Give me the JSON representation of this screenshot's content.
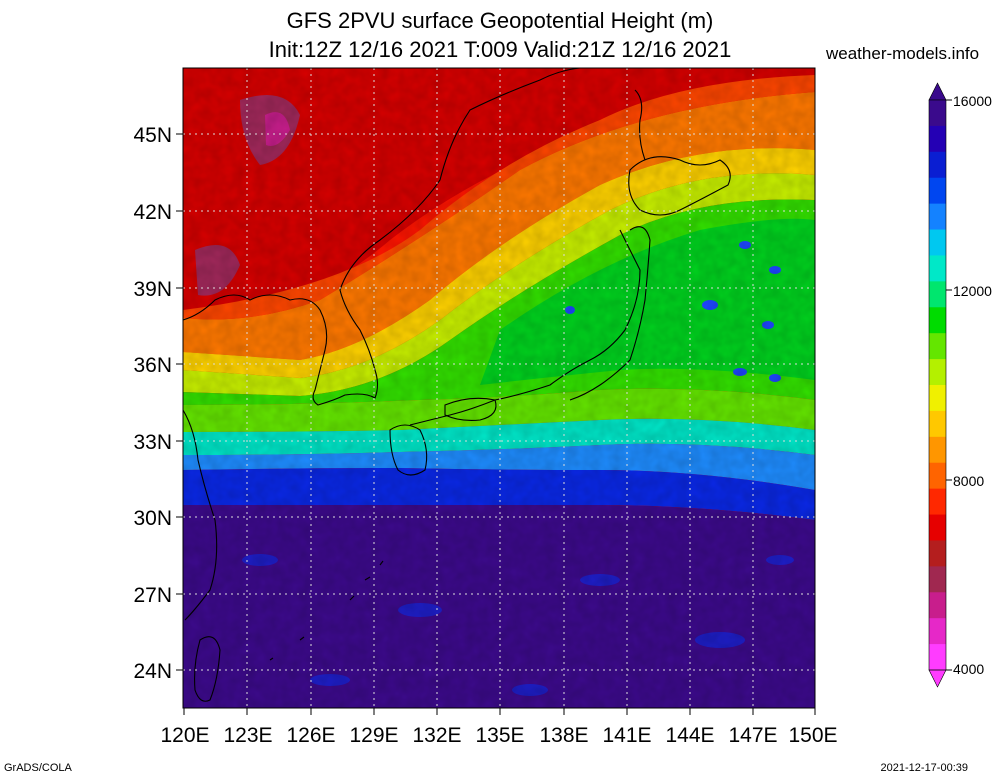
{
  "header": {
    "title_line1": "GFS 2PVU surface Geopotential Height (m)",
    "title_line2": "Init:12Z 12/16 2021 T:009 Valid:21Z 12/16 2021",
    "site": "weather-models.info"
  },
  "axes": {
    "lat_labels": [
      "45N",
      "42N",
      "39N",
      "36N",
      "33N",
      "30N",
      "27N",
      "24N"
    ],
    "lon_labels": [
      "120E",
      "123E",
      "126E",
      "129E",
      "132E",
      "135E",
      "138E",
      "141E",
      "144E",
      "147E",
      "150E"
    ]
  },
  "colorbar": {
    "labels": [
      "16000",
      "12000",
      "8000",
      "4000"
    ],
    "colors": [
      "#3a0a8c",
      "#2400b4",
      "#0a1ed2",
      "#0046f0",
      "#1482ff",
      "#00c8f0",
      "#00e8c8",
      "#00e66e",
      "#00dc00",
      "#64e600",
      "#b4f000",
      "#f0f000",
      "#ffc800",
      "#ff9600",
      "#ff6400",
      "#ff2800",
      "#e60000",
      "#b41e1e",
      "#a02850",
      "#c81e8c",
      "#e628c8",
      "#ff3cff"
    ]
  },
  "footer": {
    "left": "GrADS/COLA",
    "right": "2021-12-17-00:39"
  }
}
